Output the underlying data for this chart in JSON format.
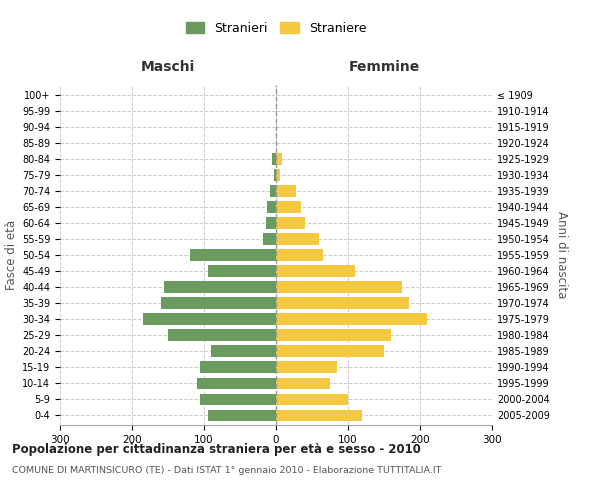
{
  "age_groups": [
    "0-4",
    "5-9",
    "10-14",
    "15-19",
    "20-24",
    "25-29",
    "30-34",
    "35-39",
    "40-44",
    "45-49",
    "50-54",
    "55-59",
    "60-64",
    "65-69",
    "70-74",
    "75-79",
    "80-84",
    "85-89",
    "90-94",
    "95-99",
    "100+"
  ],
  "birth_years": [
    "2005-2009",
    "2000-2004",
    "1995-1999",
    "1990-1994",
    "1985-1989",
    "1980-1984",
    "1975-1979",
    "1970-1974",
    "1965-1969",
    "1960-1964",
    "1955-1959",
    "1950-1954",
    "1945-1949",
    "1940-1944",
    "1935-1939",
    "1930-1934",
    "1925-1929",
    "1920-1924",
    "1915-1919",
    "1910-1914",
    "≤ 1909"
  ],
  "maschi": [
    95,
    105,
    110,
    105,
    90,
    150,
    185,
    160,
    155,
    95,
    120,
    18,
    14,
    12,
    8,
    3,
    5,
    0,
    0,
    0,
    0
  ],
  "femmine": [
    120,
    100,
    75,
    85,
    150,
    160,
    210,
    185,
    175,
    110,
    65,
    60,
    40,
    35,
    28,
    5,
    8,
    0,
    0,
    0,
    0
  ],
  "maschi_color": "#6b9a5e",
  "femmine_color": "#f5c842",
  "background_color": "#ffffff",
  "grid_color": "#cccccc",
  "title": "Popolazione per cittadinanza straniera per età e sesso - 2010",
  "subtitle": "COMUNE DI MARTINSICURO (TE) - Dati ISTAT 1° gennaio 2010 - Elaborazione TUTTITALIA.IT",
  "ylabel_left": "Fasce di età",
  "ylabel_right": "Anni di nascita",
  "xlabel_left": "Maschi",
  "xlabel_right": "Femmine",
  "legend_stranieri": "Stranieri",
  "legend_straniere": "Straniere",
  "xlim": 300
}
